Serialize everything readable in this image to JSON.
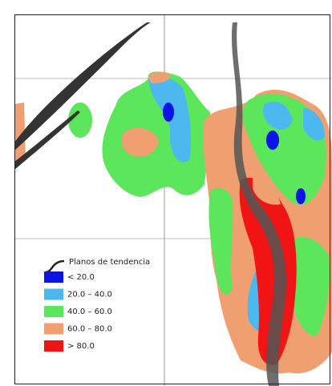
{
  "legend": {
    "title": "Planos de tendencia",
    "items": [
      {
        "label": "< 20.0",
        "color": "#0a14e6"
      },
      {
        "label": "20.0 – 40.0",
        "color": "#4db8f0"
      },
      {
        "label": "40.0 – 60.0",
        "color": "#5ce65c"
      },
      {
        "label": "60.0 – 80.0",
        "color": "#f0a070"
      },
      {
        "label": "> 80.0",
        "color": "#f01414"
      }
    ]
  }
}
